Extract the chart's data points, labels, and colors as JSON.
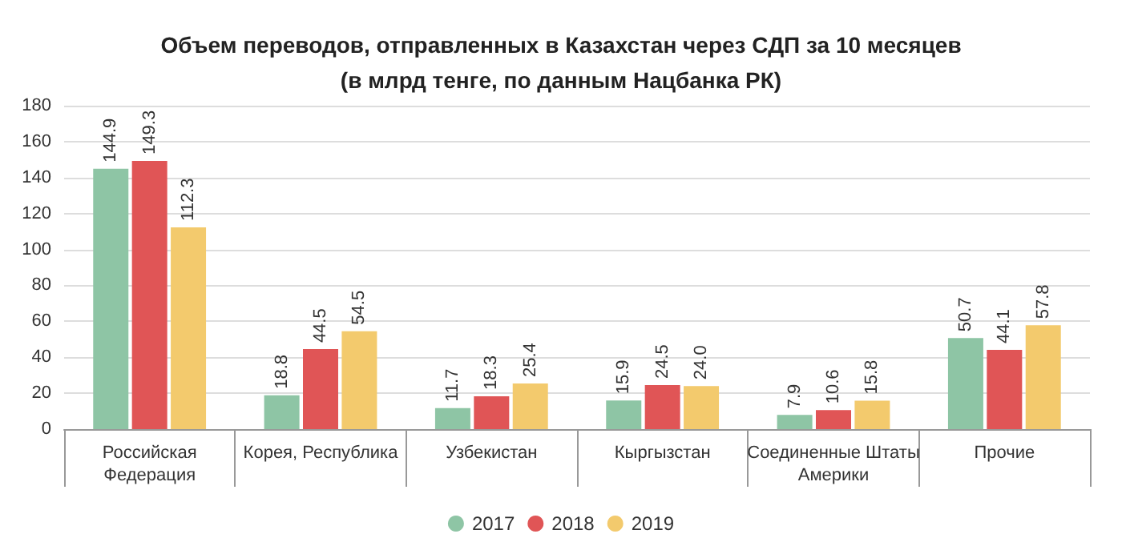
{
  "chart_data": {
    "type": "bar",
    "title": "Объем переводов, отправленных в Казахстан через СДП за 10 месяцев",
    "subtitle": "(в млрд тенге, по данным Нацбанка РК)",
    "categories": [
      "Российская Федерация",
      "Корея, Республика",
      "Узбекистан",
      "Кыргызстан",
      "Соединенные Штаты Америки",
      "Прочие"
    ],
    "series": [
      {
        "name": "2017",
        "color": "#8ec5a5",
        "values": [
          144.9,
          18.8,
          11.7,
          15.9,
          7.9,
          50.7
        ],
        "value_labels": [
          "144.9",
          "18.8",
          "11.7",
          "15.9",
          "7.9",
          "50.7"
        ]
      },
      {
        "name": "2018",
        "color": "#e05556",
        "values": [
          149.3,
          44.5,
          18.3,
          24.5,
          10.6,
          44.1
        ],
        "value_labels": [
          "149.3",
          "44.5",
          "18.3",
          "24.5",
          "10.6",
          "44.1"
        ]
      },
      {
        "name": "2019",
        "color": "#f3ca6d",
        "values": [
          112.3,
          54.5,
          25.4,
          24.0,
          15.8,
          57.8
        ],
        "value_labels": [
          "112.3",
          "54.5",
          "25.4",
          "24.0",
          "15.8",
          "57.8"
        ]
      }
    ],
    "ylim": [
      0,
      180
    ],
    "yticks": [
      0,
      20,
      40,
      60,
      80,
      100,
      120,
      140,
      160,
      180
    ],
    "grid": "y",
    "legend": "bottom"
  }
}
